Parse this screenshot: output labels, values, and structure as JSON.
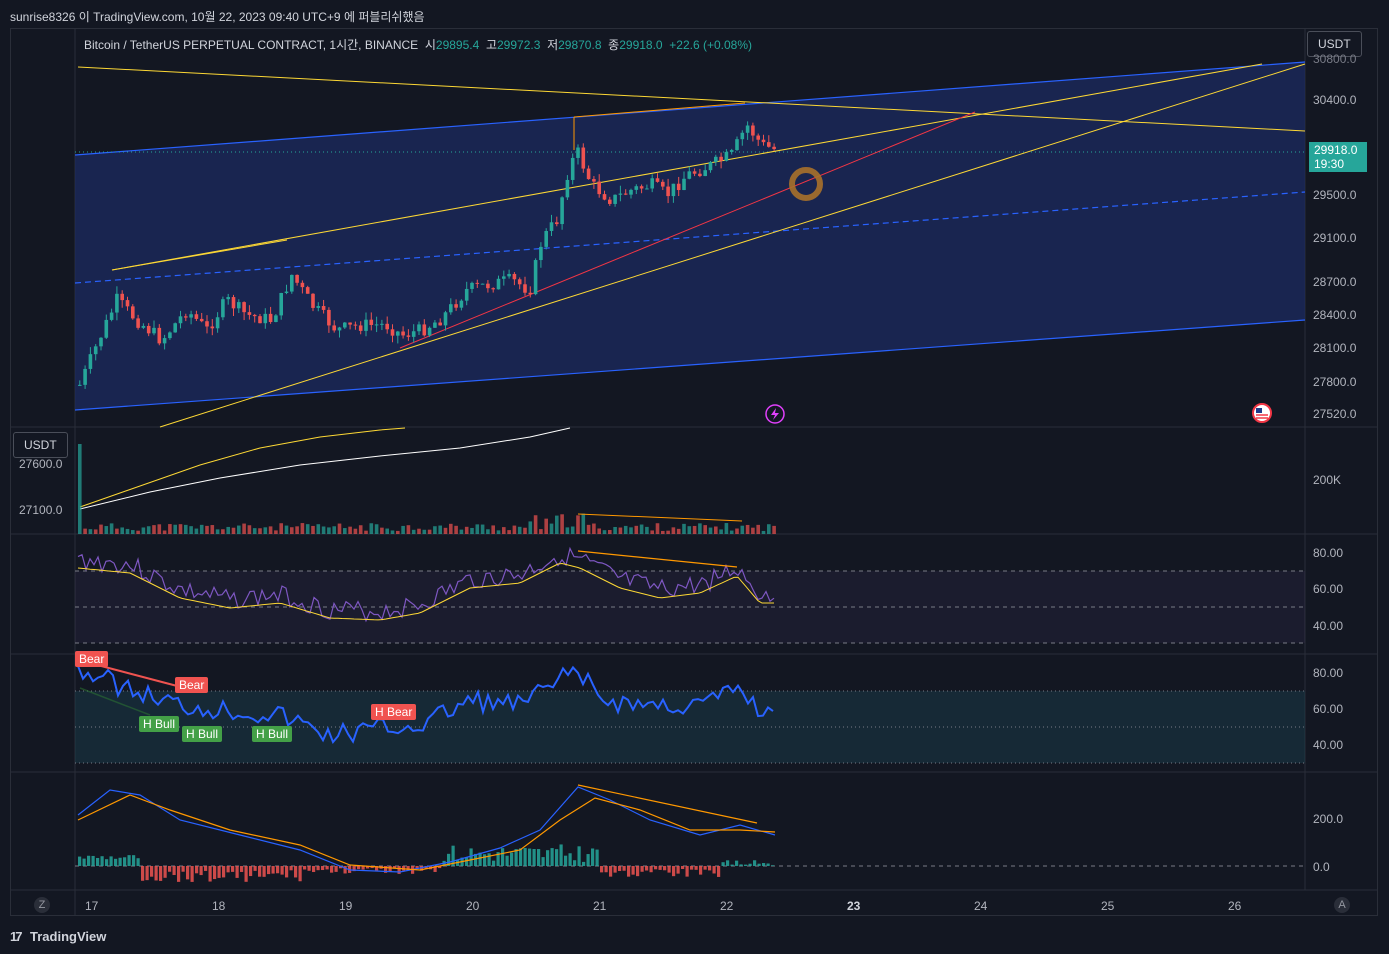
{
  "header": {
    "caption": "sunrise8326 이 TradingView.com, 10월 22, 2023 09:40 UTC+9 에 퍼블리쉬했음"
  },
  "legend": {
    "symbol": "Bitcoin / TetherUS PERPETUAL CONTRACT, 1시간, BINANCE",
    "open_label": "시",
    "open": "29895.4",
    "high_label": "고",
    "high": "29972.3",
    "low_label": "저",
    "low": "29870.8",
    "close_label": "종",
    "close": "29918.0",
    "change": "+22.6 (+0.08%)"
  },
  "price_axis": {
    "currency_label": "USDT",
    "labels": [
      "30800.0",
      "30400.0",
      "29500.0",
      "29100.0",
      "28700.0",
      "28400.0",
      "28100.0",
      "27800.0",
      "27520.0"
    ],
    "last_price": "29918.0",
    "countdown": "19:30"
  },
  "volume_pane": {
    "currency_label": "USDT",
    "left_labels": [
      "27600.0",
      "27100.0"
    ],
    "right_label": "200K"
  },
  "rsi_pane": {
    "labels": [
      "80.00",
      "60.00",
      "40.00"
    ]
  },
  "div_pane": {
    "labels": [
      "80.00",
      "60.00",
      "40.00"
    ],
    "tags": [
      "Bear",
      "Bear",
      "H Bull",
      "H Bull",
      "H Bull",
      "H Bear"
    ]
  },
  "macd_pane": {
    "labels": [
      "200.0",
      "0.0"
    ]
  },
  "time_axis": {
    "labels": [
      "17",
      "18",
      "19",
      "20",
      "21",
      "22",
      "23",
      "24",
      "25",
      "26"
    ],
    "bold_label": "23"
  },
  "corners": {
    "left": "Z",
    "right": "A"
  },
  "footer": {
    "brand": "TradingView",
    "logo": "17"
  },
  "colors": {
    "up": "#26a69a",
    "down": "#ef5350",
    "channel": "#2962ff",
    "trendline": "#fdd835",
    "divergence": "#ff9800",
    "rsi": "#7e57c2",
    "div_line": "#2962ff"
  },
  "icons": [
    "lightning-icon",
    "us-flag-icon"
  ]
}
